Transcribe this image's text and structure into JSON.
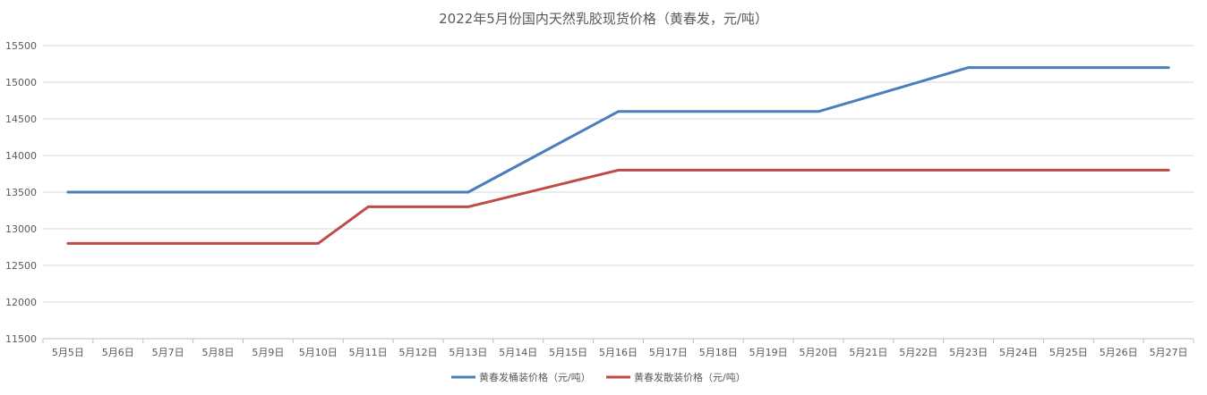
{
  "chart_data": {
    "type": "line",
    "title": "2022年5月份国内天然乳胶现货价格（黄春发，元/吨）",
    "categories": [
      "5月5日",
      "5月6日",
      "5月7日",
      "5月8日",
      "5月9日",
      "5月10日",
      "5月11日",
      "5月12日",
      "5月13日",
      "5月14日",
      "5月15日",
      "5月16日",
      "5月17日",
      "5月18日",
      "5月19日",
      "5月20日",
      "5月21日",
      "5月22日",
      "5月23日",
      "5月24日",
      "5月25日",
      "5月26日",
      "5月27日"
    ],
    "ylim": [
      11500,
      15500
    ],
    "yticks": [
      11500,
      12000,
      12500,
      13000,
      13500,
      14000,
      14500,
      15000,
      15500
    ],
    "grid": true,
    "legend_position": "bottom",
    "series": [
      {
        "name": "黄春发桶装价格（元/吨）",
        "color": "#4a7ebb",
        "values": [
          13500,
          13500,
          13500,
          13500,
          13500,
          13500,
          13500,
          13500,
          13500,
          null,
          null,
          14600,
          14600,
          14600,
          14600,
          14600,
          null,
          null,
          15200,
          15200,
          15200,
          15200,
          15200
        ]
      },
      {
        "name": "黄春发散装价格（元/吨）",
        "color": "#be4b48",
        "values": [
          12800,
          12800,
          12800,
          12800,
          12800,
          12800,
          13300,
          13300,
          13300,
          null,
          null,
          13800,
          13800,
          13800,
          13800,
          13800,
          null,
          null,
          13800,
          13800,
          13800,
          13800,
          13800
        ]
      }
    ]
  }
}
